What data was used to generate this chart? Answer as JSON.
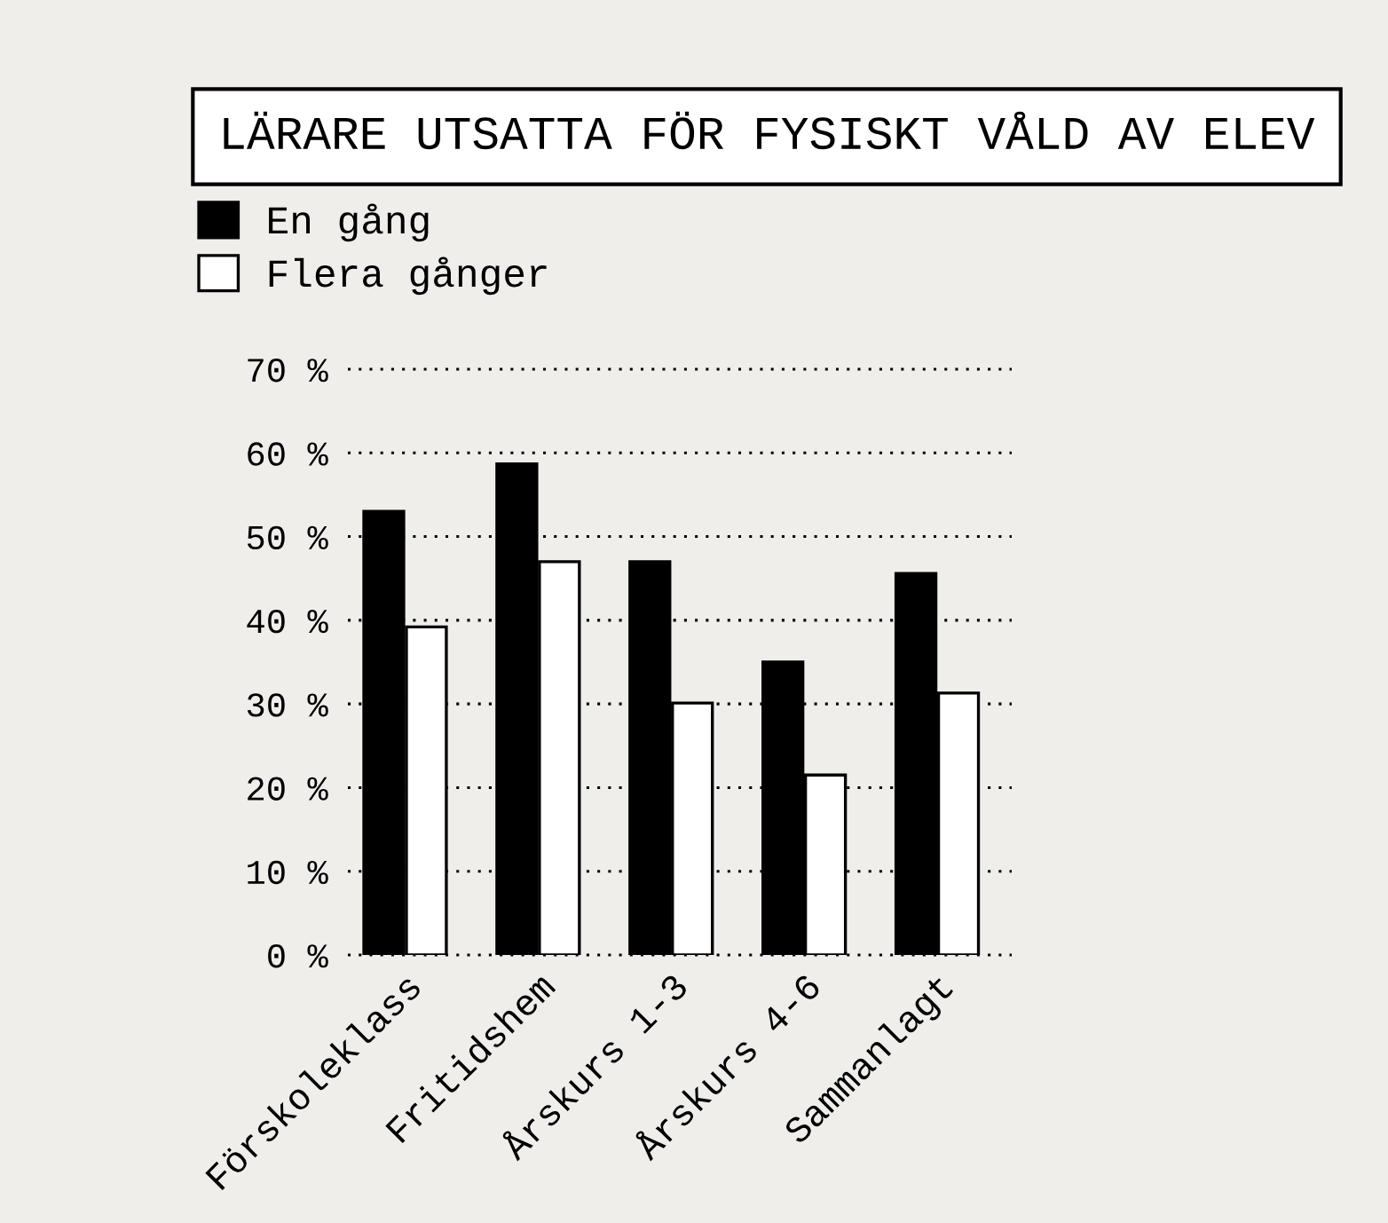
{
  "chart_data": {
    "type": "bar",
    "title": "LÄRARE UTSATTA FÖR FYSISKT VÅLD AV ELEV",
    "categories": [
      "Förskoleklass",
      "Fritidshem",
      "Årskurs 1-3",
      "Årskurs 4-6",
      "Sammanlagt"
    ],
    "series": [
      {
        "name": "En gång",
        "color": "#000000",
        "values": [
          53,
          58.7,
          47,
          35,
          45.6
        ]
      },
      {
        "name": "Flera gånger",
        "color": "#ffffff",
        "values": [
          39.2,
          47,
          30.1,
          21.5,
          31.3
        ]
      }
    ],
    "ylim": [
      0,
      70
    ],
    "yticks": [
      {
        "value": 0,
        "label": "0 %"
      },
      {
        "value": 10,
        "label": "10 %"
      },
      {
        "value": 20,
        "label": "20 %"
      },
      {
        "value": 30,
        "label": "30 %"
      },
      {
        "value": 40,
        "label": "40 %"
      },
      {
        "value": 50,
        "label": "50 %"
      },
      {
        "value": 60,
        "label": "60 %"
      },
      {
        "value": 70,
        "label": "70 %"
      }
    ],
    "grid": "y",
    "legend": "top left"
  }
}
